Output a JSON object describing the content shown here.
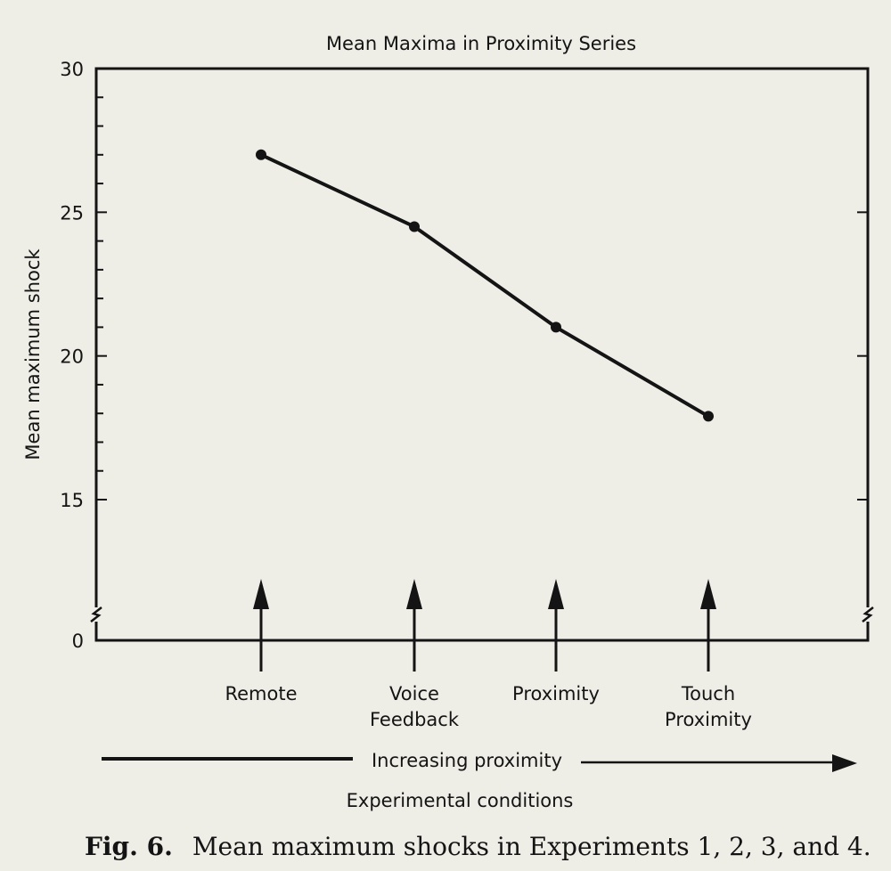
{
  "chart_data": {
    "type": "line",
    "title": "Mean Maxima in Proximity Series",
    "ylabel": "Mean maximum shock",
    "ylim": [
      0,
      30
    ],
    "y_axis_break": true,
    "yticks": [
      {
        "value": 0,
        "label": "0"
      },
      {
        "value": 15,
        "label": "15"
      },
      {
        "value": 20,
        "label": "20"
      },
      {
        "value": 25,
        "label": "25"
      },
      {
        "value": 30,
        "label": "30"
      }
    ],
    "categories": [
      {
        "lines": [
          "Remote"
        ]
      },
      {
        "lines": [
          "Voice",
          "Feedback"
        ]
      },
      {
        "lines": [
          "Proximity"
        ]
      },
      {
        "lines": [
          "Touch",
          "Proximity"
        ]
      }
    ],
    "series": [
      {
        "values": [
          27.0,
          24.5,
          21.0,
          17.9
        ]
      }
    ],
    "grid": false,
    "proximity_arrow_label": "Increasing proximity",
    "xlabel": "Experimental conditions",
    "line_color": "#141414"
  },
  "caption": {
    "label": "Fig. 6.",
    "text": "Mean maximum shocks in Experiments 1, 2, 3, and 4."
  }
}
